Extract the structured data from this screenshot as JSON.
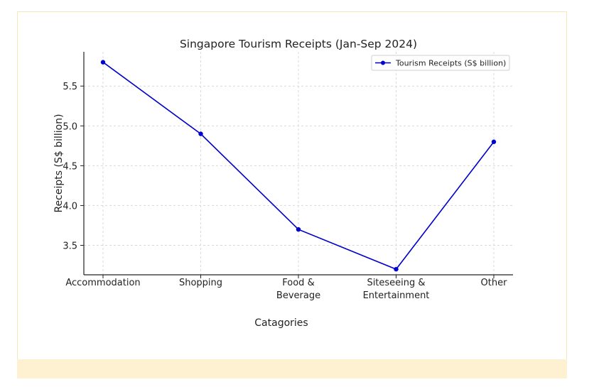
{
  "chart_data": {
    "type": "line",
    "title": "Singapore Tourism Receipts (Jan-Sep 2024)",
    "xlabel": "Catagories",
    "ylabel": "Receipts (S$ billion)",
    "categories": [
      [
        "Accommodation"
      ],
      [
        "Shopping"
      ],
      [
        "Food &",
        "Beverage"
      ],
      [
        "Siteseeing &",
        "Entertainment"
      ],
      [
        "Other"
      ]
    ],
    "series": [
      {
        "name": "Tourism Receipts (S$ billion)",
        "values": [
          5.8,
          4.9,
          3.7,
          3.2,
          4.8
        ],
        "color": "#0000cc"
      }
    ],
    "ylim": [
      3.13,
      5.93
    ],
    "yticks": [
      "3.5",
      "4.0",
      "4.5",
      "5.0",
      "5.5"
    ],
    "grid": true,
    "legend_position": "top-right"
  }
}
